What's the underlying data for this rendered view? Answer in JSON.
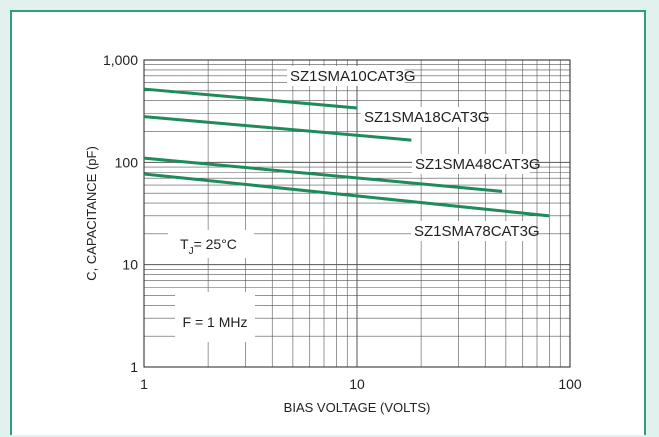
{
  "chart_data": {
    "type": "line",
    "x_scale": "log",
    "y_scale": "log",
    "xlim": [
      1,
      100
    ],
    "ylim": [
      1,
      1000
    ],
    "xlabel": "BIAS VOLTAGE (VOLTS)",
    "ylabel": "C, CAPACITANCE (pF)",
    "x_ticks": [
      {
        "value": 1,
        "label": "1"
      },
      {
        "value": 10,
        "label": "10"
      },
      {
        "value": 100,
        "label": "100"
      }
    ],
    "y_ticks": [
      {
        "value": 1,
        "label": "1"
      },
      {
        "value": 10,
        "label": "10"
      },
      {
        "value": 100,
        "label": "100"
      },
      {
        "value": 1000,
        "label": "1,000"
      }
    ],
    "grid": true,
    "line_color": "#1f8a5a",
    "series": [
      {
        "name": "SZ1SMA10CAT3G",
        "x": [
          1,
          10
        ],
        "y": [
          520,
          340
        ]
      },
      {
        "name": "SZ1SMA18CAT3G",
        "x": [
          1,
          18
        ],
        "y": [
          280,
          165
        ]
      },
      {
        "name": "SZ1SMA48CAT3G",
        "x": [
          1,
          48
        ],
        "y": [
          110,
          52
        ]
      },
      {
        "name": "SZ1SMA78CAT3G",
        "x": [
          1,
          80
        ],
        "y": [
          77,
          30
        ]
      }
    ],
    "annotations": {
      "temperature": {
        "symbol": "T",
        "subscript": "J",
        "text": "= 25°C"
      },
      "frequency": "F = 1 MHz"
    }
  },
  "colors": {
    "background": "#e1f1ee",
    "frame_border": "#2e9f86",
    "grid": "#555555",
    "series": "#1f8a5a"
  }
}
